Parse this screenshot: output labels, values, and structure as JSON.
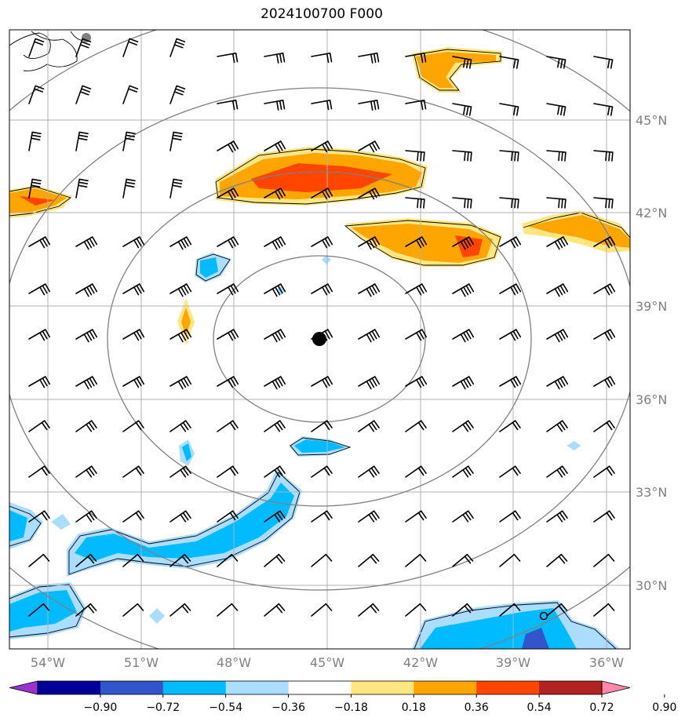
{
  "title": "2024100700 F000",
  "map": {
    "lon_labels": [
      "54°W",
      "51°W",
      "48°W",
      "45°W",
      "42°W",
      "39°W",
      "36°W"
    ],
    "lat_labels": [
      "45°N",
      "42°N",
      "39°N",
      "36°N",
      "33°N",
      "30°N"
    ],
    "storm_center": {
      "lon": -45.0,
      "lat": 37.8
    },
    "range_rings": 4
  },
  "colorbar": {
    "ticks": [
      "−0.90",
      "−0.72",
      "−0.54",
      "−0.36",
      "−0.18",
      "0.18",
      "0.36",
      "0.54",
      "0.72",
      "0.90"
    ],
    "colors": [
      "#9933cc",
      "#000099",
      "#3355cc",
      "#00bbff",
      "#aaddff",
      "#ffffff",
      "#ffe680",
      "#ffa500",
      "#ff4500",
      "#b22222",
      "#ff88aa"
    ]
  }
}
